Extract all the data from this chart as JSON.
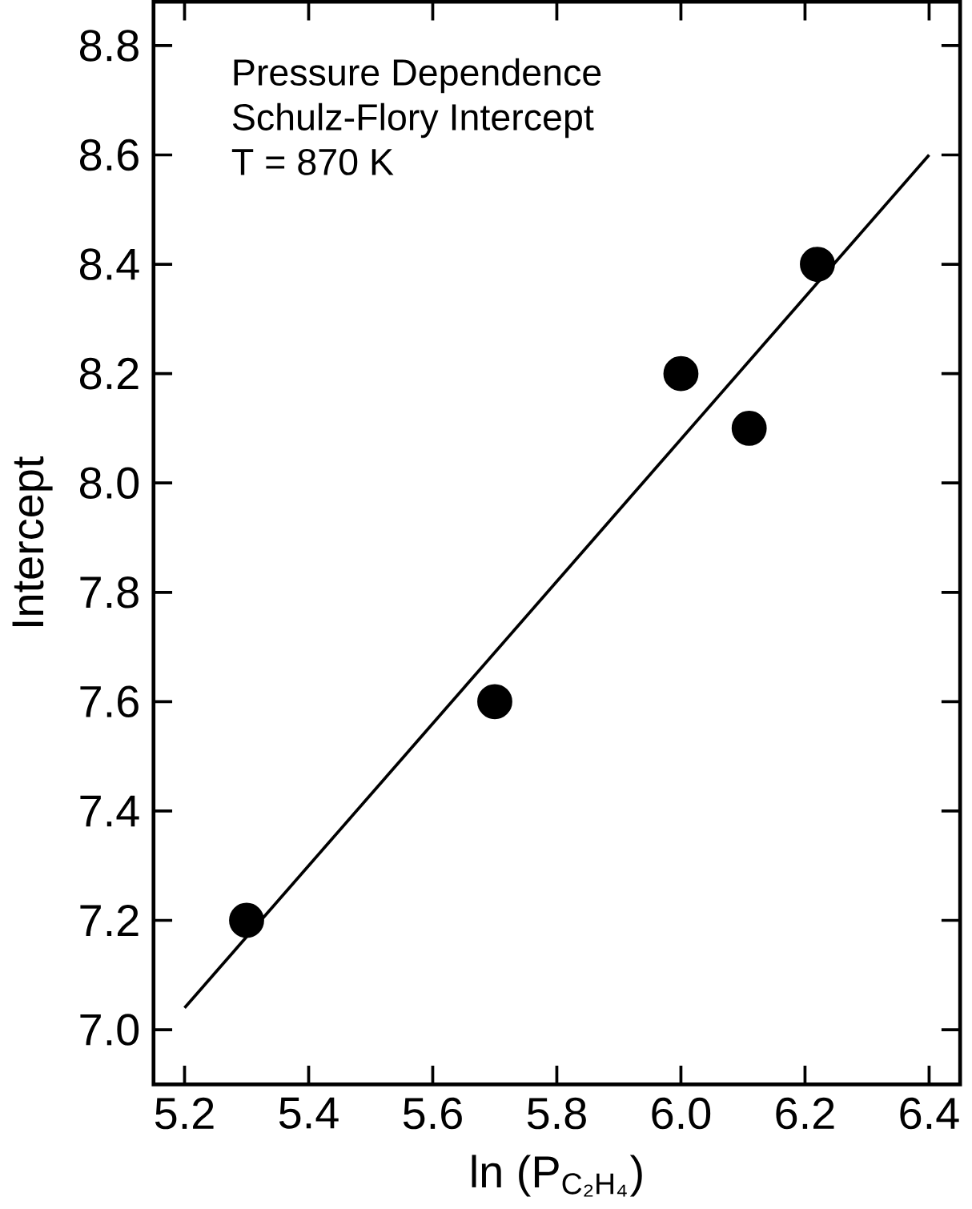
{
  "chart_data": {
    "type": "scatter",
    "xlabel": "ln (P$_{C₂H₄}$)",
    "ylabel": "Intercept",
    "annotations": [
      "Pressure Dependence",
      "Schulz-Flory Intercept",
      "T = 870 K"
    ],
    "xlim": [
      5.15,
      6.45
    ],
    "ylim": [
      6.9,
      8.88
    ],
    "xticks": [
      5.2,
      5.4,
      5.6,
      5.8,
      {
        "value": 6,
        "label": "6.0"
      },
      6.2,
      6.4
    ],
    "yticks": [
      {
        "value": 7,
        "label": "7.0"
      },
      7.2,
      7.4,
      7.6,
      7.8,
      {
        "value": 8,
        "label": "8.0"
      },
      8.2,
      8.4,
      8.6,
      8.8
    ],
    "marker": "circle",
    "grid": false,
    "series": [
      {
        "color": "#000000",
        "x": [
          5.3,
          5.7,
          6.0,
          6.11,
          6.22
        ],
        "values": [
          7.2,
          7.6,
          8.2,
          8.1,
          8.4
        ]
      },
      {
        "type": "line",
        "color": "#000000",
        "marker": "none",
        "line_style": "solid",
        "x": [
          5.2,
          6.4
        ],
        "values": [
          7.04,
          8.6
        ]
      }
    ]
  }
}
